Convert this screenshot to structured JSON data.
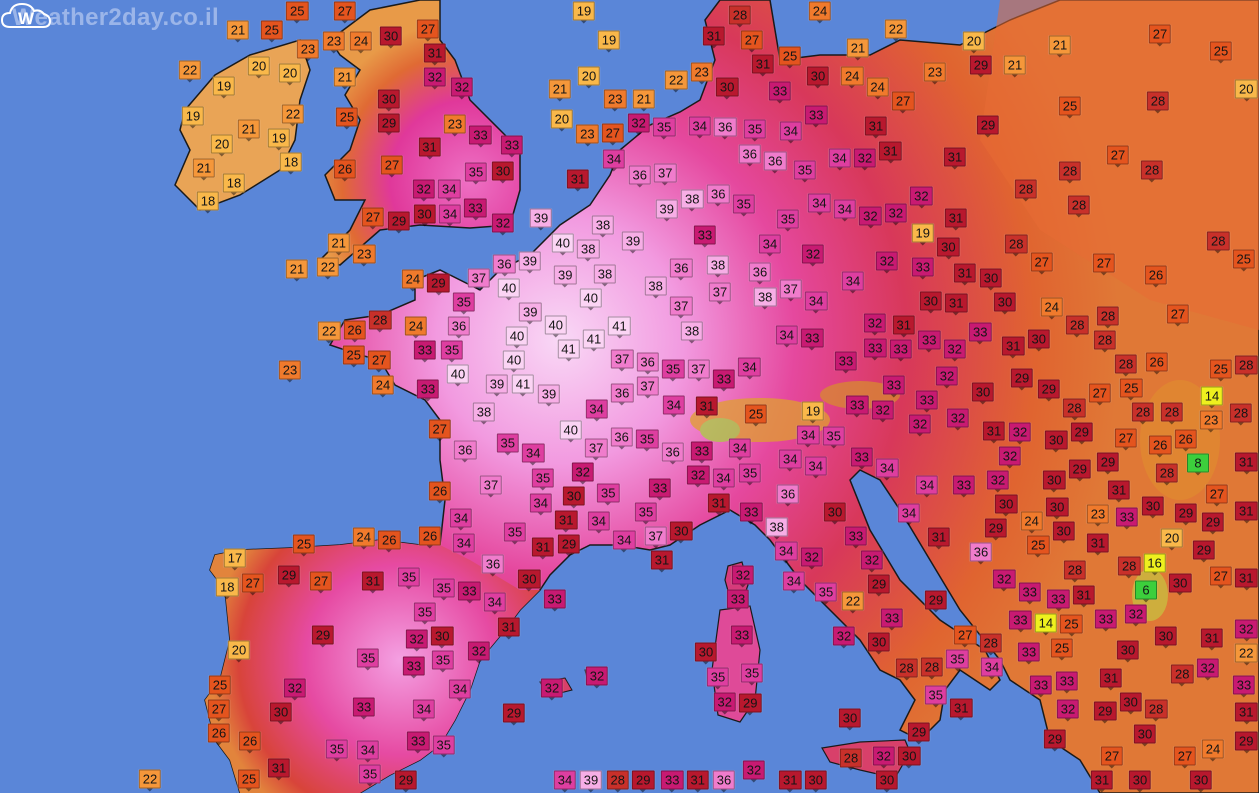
{
  "watermark": "Weather2day.co.il",
  "logo_letter": "W",
  "colors": {
    "ocean": "#5a86d8",
    "land_warm": "#e2622c",
    "land_hot": "#e8409c",
    "land_hottest": "#f7c8f0"
  },
  "color_scale": [
    {
      "min": 0,
      "color": "#3ccf3c"
    },
    {
      "min": 13,
      "color": "#eef01e"
    },
    {
      "min": 17,
      "color": "#f9b84a"
    },
    {
      "min": 21,
      "color": "#f5973a"
    },
    {
      "min": 23,
      "color": "#f07a2c"
    },
    {
      "min": 25,
      "color": "#e4541e"
    },
    {
      "min": 28,
      "color": "#c8302a"
    },
    {
      "min": 29,
      "color": "#b8182e"
    },
    {
      "min": 32,
      "color": "#c81a72"
    },
    {
      "min": 34,
      "color": "#de3ea0"
    },
    {
      "min": 36,
      "color": "#f07ccc"
    },
    {
      "min": 38,
      "color": "#f7aee6"
    },
    {
      "min": 40,
      "color": "#fbd4f4"
    }
  ],
  "temperature_labels": [
    "25",
    "27",
    "19",
    "22",
    "24",
    "28",
    "27",
    "31",
    "25",
    "21",
    "20",
    "21",
    "27",
    "25",
    "29",
    "21",
    "23",
    "30",
    "24",
    "24",
    "27",
    "33",
    "30",
    "23",
    "22",
    "31",
    "19",
    "21",
    "25",
    "23",
    "23",
    "24",
    "30",
    "27",
    "31",
    "32",
    "22",
    "21",
    "20",
    "20",
    "19",
    "20",
    "21",
    "23",
    "21",
    "35",
    "32",
    "34",
    "36",
    "35",
    "34",
    "33",
    "31",
    "29",
    "25",
    "28",
    "20",
    "19",
    "21",
    "19",
    "22",
    "25",
    "29",
    "30",
    "32",
    "23",
    "33",
    "33",
    "20",
    "23",
    "27",
    "34",
    "31",
    "20",
    "31",
    "18",
    "21",
    "18",
    "18",
    "26",
    "27",
    "35",
    "30",
    "32",
    "34",
    "34",
    "33",
    "30",
    "27",
    "29",
    "32",
    "36",
    "37",
    "36",
    "36",
    "35",
    "34",
    "32",
    "31",
    "31",
    "27",
    "28",
    "28",
    "28",
    "28",
    "36",
    "35",
    "38",
    "39",
    "35",
    "34",
    "34",
    "32",
    "32",
    "32",
    "31",
    "19",
    "23",
    "21",
    "22",
    "21",
    "39",
    "38",
    "39",
    "40",
    "38",
    "33",
    "34",
    "32",
    "32",
    "33",
    "30",
    "28",
    "27",
    "27",
    "28",
    "25",
    "26",
    "36",
    "39",
    "39",
    "38",
    "36",
    "38",
    "36",
    "38",
    "37",
    "34",
    "34",
    "31",
    "30",
    "24",
    "29",
    "37",
    "40",
    "40",
    "38",
    "37",
    "37",
    "30",
    "31",
    "30",
    "24",
    "27",
    "35",
    "36",
    "39",
    "40",
    "41",
    "38",
    "34",
    "33",
    "32",
    "33",
    "31",
    "33",
    "33",
    "32",
    "33",
    "28",
    "28",
    "30",
    "31",
    "28",
    "24",
    "28",
    "22",
    "26",
    "25",
    "33",
    "35",
    "40",
    "40",
    "41",
    "41",
    "37",
    "36",
    "35",
    "37",
    "33",
    "34",
    "33",
    "25",
    "26",
    "28",
    "25",
    "28",
    "27",
    "24",
    "23",
    "33",
    "40",
    "39",
    "41",
    "39",
    "37",
    "36",
    "33",
    "32",
    "30",
    "29",
    "29",
    "27",
    "28",
    "28",
    "28",
    "14",
    "28",
    "38",
    "34",
    "34",
    "31",
    "25",
    "19",
    "33",
    "32",
    "33",
    "32",
    "32",
    "34",
    "35",
    "40",
    "27",
    "36",
    "35",
    "31",
    "30",
    "29",
    "27",
    "26",
    "26",
    "23",
    "35",
    "36",
    "34",
    "37",
    "36",
    "33",
    "34",
    "35",
    "34",
    "34",
    "33",
    "32",
    "32",
    "30",
    "29",
    "29",
    "28",
    "8",
    "31",
    "35",
    "37",
    "32",
    "34",
    "32",
    "34",
    "26",
    "30",
    "35",
    "33",
    "36",
    "31",
    "34",
    "33",
    "32",
    "30",
    "30",
    "31",
    "33",
    "30",
    "29",
    "27",
    "29",
    "31",
    "34",
    "31",
    "34",
    "33",
    "30",
    "34",
    "29",
    "24",
    "30",
    "23",
    "26",
    "24",
    "26",
    "25",
    "35",
    "34",
    "35",
    "29",
    "34",
    "37",
    "31",
    "30",
    "31",
    "38",
    "34",
    "33",
    "31",
    "36",
    "20",
    "29",
    "17",
    "34",
    "36",
    "25",
    "31",
    "16",
    "28",
    "6",
    "30",
    "27",
    "31",
    "27",
    "29",
    "27",
    "31",
    "35",
    "35",
    "33",
    "30",
    "33",
    "34",
    "32",
    "32",
    "29",
    "32",
    "34",
    "33",
    "33",
    "28",
    "32",
    "18",
    "29",
    "35",
    "32",
    "30",
    "31",
    "32",
    "33",
    "35",
    "22",
    "29",
    "33",
    "14",
    "25",
    "32",
    "31",
    "33",
    "31",
    "32",
    "20",
    "35",
    "33",
    "35",
    "32",
    "30",
    "33",
    "33",
    "30",
    "32",
    "27",
    "28",
    "25",
    "33",
    "35",
    "34",
    "30",
    "30",
    "22",
    "25",
    "32",
    "34",
    "32",
    "35",
    "35",
    "28",
    "28",
    "33",
    "33",
    "31",
    "30",
    "28",
    "32",
    "33",
    "27",
    "30",
    "33",
    "34",
    "29",
    "32",
    "29",
    "35",
    "31",
    "32",
    "29",
    "28",
    "31",
    "26",
    "26",
    "33",
    "35",
    "35",
    "34",
    "30",
    "30",
    "29",
    "29",
    "28",
    "32",
    "30",
    "27",
    "27",
    "24",
    "29",
    "22",
    "25",
    "31",
    "35",
    "29",
    "34",
    "39",
    "28",
    "29",
    "33",
    "31",
    "36",
    "32",
    "31",
    "30",
    "30",
    "31",
    "30",
    "30"
  ]
}
